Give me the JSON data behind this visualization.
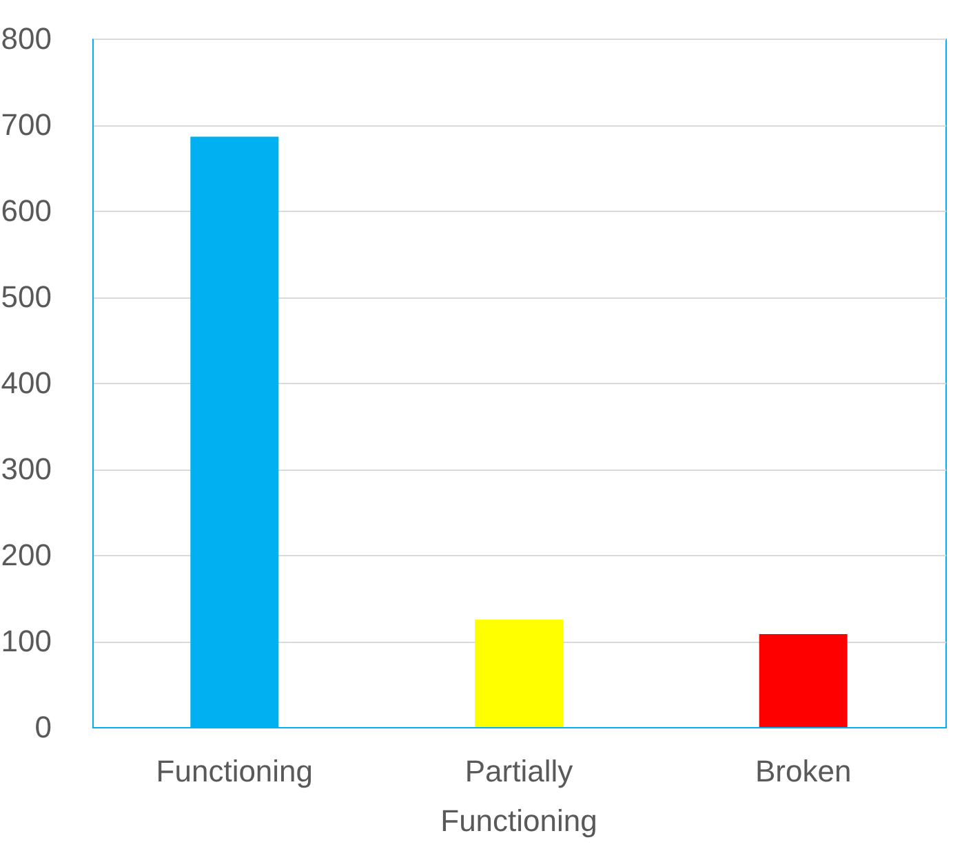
{
  "chart_data": {
    "type": "bar",
    "categories": [
      "Functioning",
      "Partially Functioning",
      "Broken"
    ],
    "values": [
      686,
      125,
      108
    ],
    "colors": [
      "#00b0f0",
      "#ffff00",
      "#ff0000"
    ],
    "ylim": [
      0,
      800
    ],
    "yticks": [
      0,
      100,
      200,
      300,
      400,
      500,
      600,
      700,
      800
    ],
    "grid": "y"
  }
}
